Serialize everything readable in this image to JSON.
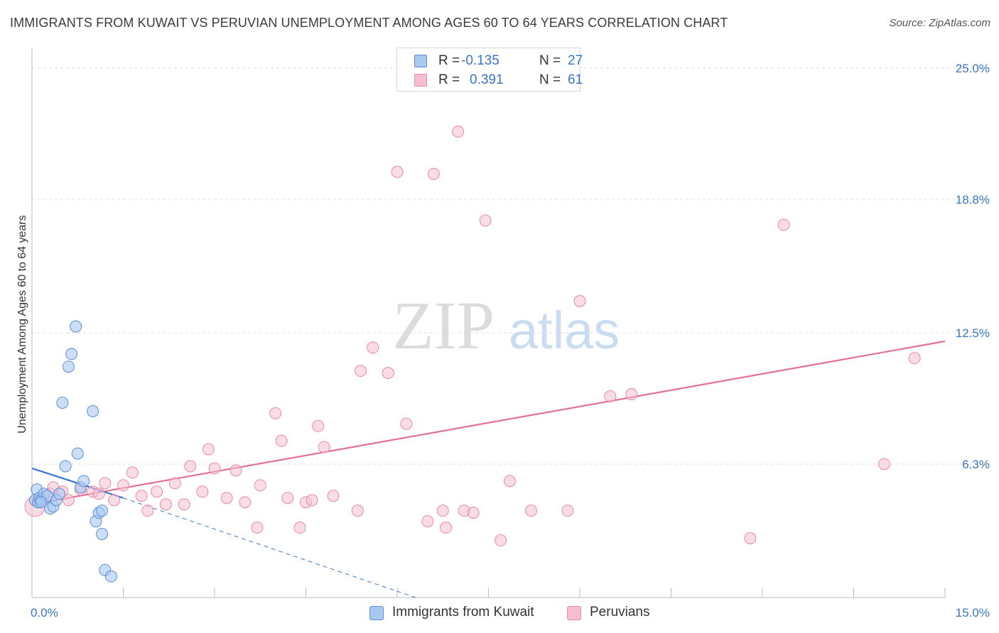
{
  "title": "IMMIGRANTS FROM KUWAIT VS PERUVIAN UNEMPLOYMENT AMONG AGES 60 TO 64 YEARS CORRELATION CHART",
  "source": "Source: ZipAtlas.com",
  "watermark": {
    "zip": "ZIP",
    "atlas": "atlas"
  },
  "legend_top": [
    {
      "r_label": "R =",
      "r_value": "-0.135",
      "n_label": "N =",
      "n_value": "27"
    },
    {
      "r_label": "R =",
      "r_value": "0.391",
      "n_label": "N =",
      "n_value": "61"
    }
  ],
  "legend_bottom": [
    "Immigrants from Kuwait",
    "Peruvians"
  ],
  "colors": {
    "kuwait_fill": "#a9c8f0",
    "kuwait_stroke": "#5b8fd6",
    "kuwait_line": "#3a76d0",
    "peru_fill": "#f5bfd0",
    "peru_stroke": "#e98aa8",
    "peru_line": "#e4709a",
    "tick_label": "#3a76c4",
    "grid": "#dddddd"
  },
  "chart_data": {
    "type": "scatter",
    "title": "IMMIGRANTS FROM KUWAIT VS PERUVIAN UNEMPLOYMENT AMONG AGES 60 TO 64 YEARS CORRELATION CHART",
    "xlabel": "",
    "ylabel": "Unemployment Among Ages 60 to 64 years",
    "xlim": [
      0,
      15
    ],
    "ylim": [
      0,
      25.6
    ],
    "x_tick_labels": [
      "0.0%",
      "15.0%"
    ],
    "y_ticks": [
      6.3,
      12.5,
      18.8,
      25.0
    ],
    "y_tick_labels": [
      "6.3%",
      "12.5%",
      "18.8%",
      "25.0%"
    ],
    "grid": true,
    "series": [
      {
        "name": "Immigrants from Kuwait",
        "r": -0.135,
        "n": 27,
        "points": [
          [
            0.05,
            4.6
          ],
          [
            0.08,
            5.1
          ],
          [
            0.1,
            4.5
          ],
          [
            0.12,
            4.7
          ],
          [
            0.15,
            4.6
          ],
          [
            0.2,
            4.9
          ],
          [
            0.25,
            4.8
          ],
          [
            0.3,
            4.2
          ],
          [
            0.35,
            4.3
          ],
          [
            0.4,
            4.6
          ],
          [
            0.45,
            4.9
          ],
          [
            0.5,
            9.2
          ],
          [
            0.55,
            6.2
          ],
          [
            0.6,
            10.9
          ],
          [
            0.65,
            11.5
          ],
          [
            0.72,
            12.8
          ],
          [
            0.75,
            6.8
          ],
          [
            0.8,
            5.2
          ],
          [
            0.85,
            5.5
          ],
          [
            1.0,
            8.8
          ],
          [
            1.05,
            3.6
          ],
          [
            1.1,
            4.0
          ],
          [
            1.15,
            3.0
          ],
          [
            1.15,
            4.1
          ],
          [
            1.2,
            1.3
          ],
          [
            1.3,
            1.0
          ],
          [
            0.15,
            4.5
          ]
        ],
        "trend": {
          "x": [
            0.0,
            1.5
          ],
          "y": [
            6.1,
            4.7
          ],
          "dashed_to": [
            6.3,
            0.0
          ]
        }
      },
      {
        "name": "Peruvians",
        "r": 0.391,
        "n": 61,
        "points": [
          [
            0.05,
            4.3
          ],
          [
            0.3,
            4.9
          ],
          [
            0.35,
            5.2
          ],
          [
            0.5,
            5.0
          ],
          [
            0.8,
            5.1
          ],
          [
            1.0,
            5.0
          ],
          [
            1.1,
            4.9
          ],
          [
            1.2,
            5.4
          ],
          [
            1.35,
            4.6
          ],
          [
            1.5,
            5.3
          ],
          [
            1.65,
            5.9
          ],
          [
            1.8,
            4.8
          ],
          [
            1.9,
            4.1
          ],
          [
            2.05,
            5.0
          ],
          [
            2.2,
            4.4
          ],
          [
            2.35,
            5.4
          ],
          [
            2.5,
            4.4
          ],
          [
            2.6,
            6.2
          ],
          [
            2.8,
            5.0
          ],
          [
            2.9,
            7.0
          ],
          [
            3.0,
            6.1
          ],
          [
            3.2,
            4.7
          ],
          [
            3.35,
            6.0
          ],
          [
            3.5,
            4.5
          ],
          [
            3.7,
            3.3
          ],
          [
            3.75,
            5.3
          ],
          [
            4.0,
            8.7
          ],
          [
            4.1,
            7.4
          ],
          [
            4.2,
            4.7
          ],
          [
            4.4,
            3.3
          ],
          [
            4.5,
            4.5
          ],
          [
            4.6,
            4.6
          ],
          [
            4.7,
            8.1
          ],
          [
            4.8,
            7.1
          ],
          [
            4.95,
            4.8
          ],
          [
            5.35,
            4.1
          ],
          [
            5.4,
            10.7
          ],
          [
            5.6,
            11.8
          ],
          [
            5.85,
            10.6
          ],
          [
            6.0,
            20.1
          ],
          [
            6.15,
            8.2
          ],
          [
            6.6,
            20.0
          ],
          [
            6.5,
            3.6
          ],
          [
            6.75,
            4.1
          ],
          [
            6.8,
            3.3
          ],
          [
            7.0,
            22.0
          ],
          [
            7.1,
            4.1
          ],
          [
            7.25,
            4.0
          ],
          [
            7.45,
            17.8
          ],
          [
            7.7,
            2.7
          ],
          [
            7.85,
            5.5
          ],
          [
            8.2,
            4.1
          ],
          [
            8.8,
            4.1
          ],
          [
            9.0,
            14.0
          ],
          [
            9.5,
            9.5
          ],
          [
            9.85,
            9.6
          ],
          [
            11.8,
            2.8
          ],
          [
            12.35,
            17.6
          ],
          [
            14.0,
            6.3
          ],
          [
            14.5,
            11.3
          ],
          [
            0.6,
            4.6
          ]
        ],
        "trend": {
          "x": [
            0.0,
            15.0
          ],
          "y": [
            4.4,
            12.1
          ]
        }
      }
    ]
  }
}
